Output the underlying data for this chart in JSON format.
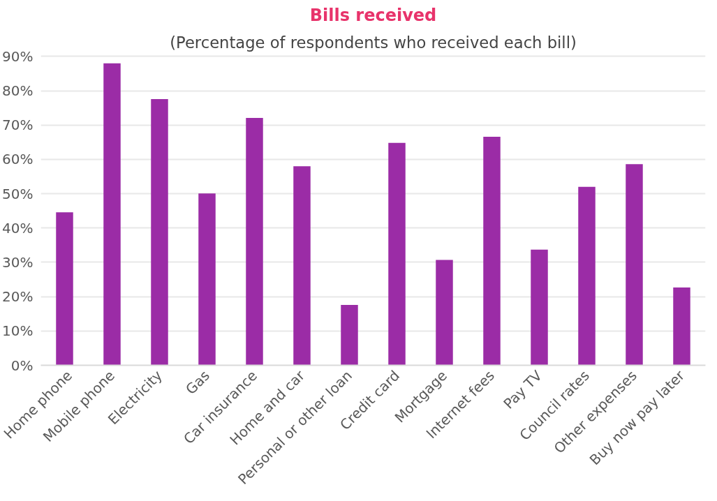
{
  "chart_data": {
    "type": "bar",
    "title": "Bills received",
    "subtitle": "(Percentage of respondents who received each bill)",
    "categories": [
      "Home phone",
      "Mobile phone",
      "Electricity",
      "Gas",
      "Car insurance",
      "Home and car",
      "Personal or other loan",
      "Credit card",
      "Mortgage",
      "Internet fees",
      "Pay TV",
      "Council rates",
      "Other expenses",
      "Buy now pay later"
    ],
    "values": [
      44.6,
      88,
      77.6,
      50.1,
      72.1,
      58,
      17.6,
      64.8,
      30.7,
      66.6,
      33.7,
      52,
      58.6,
      22.7
    ],
    "color": "#9b2ca6",
    "ylim": [
      0,
      90
    ],
    "yticks": [
      {
        "value": 0,
        "label": "0%"
      },
      {
        "value": 10,
        "label": "10%"
      },
      {
        "value": 20,
        "label": "20%"
      },
      {
        "value": 30,
        "label": "30%"
      },
      {
        "value": 40,
        "label": "40%"
      },
      {
        "value": 50,
        "label": "50%"
      },
      {
        "value": 60,
        "label": "60%"
      },
      {
        "value": 70,
        "label": "70%"
      },
      {
        "value": 80,
        "label": "80%"
      },
      {
        "value": 90,
        "label": "90%"
      }
    ],
    "grid": "y"
  }
}
